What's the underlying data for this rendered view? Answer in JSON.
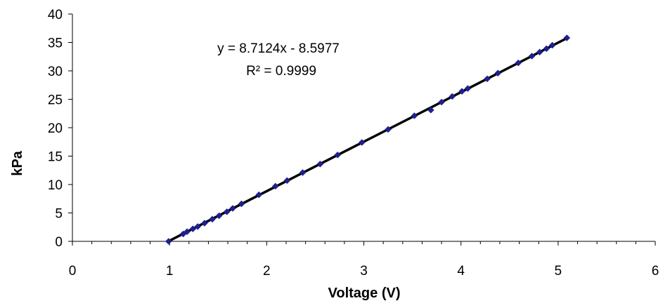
{
  "chart_data": {
    "type": "scatter",
    "title": "",
    "xlabel": "Voltage (V)",
    "ylabel": "kPa",
    "xlim": [
      0,
      6
    ],
    "ylim": [
      0,
      40
    ],
    "xticks": [
      0,
      1,
      2,
      3,
      4,
      5,
      6
    ],
    "yticks": [
      0,
      5,
      10,
      15,
      20,
      25,
      30,
      35,
      40
    ],
    "grid": false,
    "legend": "none",
    "series": [
      {
        "marker": "diamond",
        "marker_color": "#1f1f8f",
        "points": [
          [
            0.99,
            0.0
          ],
          [
            1.14,
            1.3
          ],
          [
            1.18,
            1.7
          ],
          [
            1.24,
            2.2
          ],
          [
            1.29,
            2.6
          ],
          [
            1.36,
            3.2
          ],
          [
            1.44,
            3.9
          ],
          [
            1.51,
            4.5
          ],
          [
            1.59,
            5.2
          ],
          [
            1.65,
            5.8
          ],
          [
            1.74,
            6.6
          ],
          [
            1.92,
            8.2
          ],
          [
            2.09,
            9.7
          ],
          [
            2.21,
            10.7
          ],
          [
            2.37,
            12.1
          ],
          [
            2.55,
            13.6
          ],
          [
            2.73,
            15.2
          ],
          [
            2.98,
            17.4
          ],
          [
            3.25,
            19.7
          ],
          [
            3.52,
            22.1
          ],
          [
            3.69,
            23.1
          ],
          [
            3.8,
            24.5
          ],
          [
            3.91,
            25.5
          ],
          [
            4.01,
            26.4
          ],
          [
            4.07,
            26.9
          ],
          [
            4.27,
            28.6
          ],
          [
            4.38,
            29.6
          ],
          [
            4.59,
            31.4
          ],
          [
            4.73,
            32.6
          ],
          [
            4.81,
            33.3
          ],
          [
            4.88,
            33.9
          ],
          [
            4.94,
            34.5
          ],
          [
            5.09,
            35.8
          ]
        ]
      }
    ],
    "trendline": {
      "type": "linear",
      "slope": 8.7124,
      "intercept": -8.5977,
      "x_range": [
        0.99,
        5.09
      ],
      "color": "#000000"
    },
    "annotations": {
      "equation": "y = 8.7124x - 8.5977",
      "r_squared": "R² = 0.9999"
    }
  }
}
